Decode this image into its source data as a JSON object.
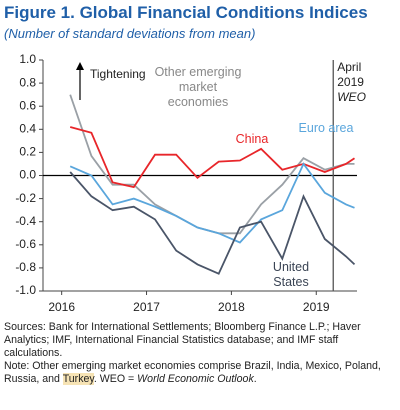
{
  "chart_data": {
    "type": "line",
    "title": "Figure 1. Global Financial Conditions Indices",
    "subtitle": "(Number of standard deviations from mean)",
    "x": [
      2016.1,
      2016.35,
      2016.6,
      2016.85,
      2017.1,
      2017.35,
      2017.6,
      2017.85,
      2018.1,
      2018.35,
      2018.6,
      2018.85,
      2019.1,
      2019.35,
      2019.45
    ],
    "series": [
      {
        "name": "Other emerging market economies",
        "color": "#9aa0a6",
        "values": [
          0.7,
          0.17,
          -0.08,
          -0.08,
          -0.25,
          -0.35,
          -0.45,
          -0.5,
          -0.5,
          -0.25,
          -0.08,
          0.15,
          0.05,
          0.1,
          0.1
        ]
      },
      {
        "name": "China",
        "color": "#e8262a",
        "values": [
          0.42,
          0.37,
          -0.06,
          -0.1,
          0.18,
          0.18,
          -0.02,
          0.12,
          0.13,
          0.23,
          0.05,
          0.1,
          0.03,
          0.1,
          0.15
        ]
      },
      {
        "name": "Euro area",
        "color": "#5aa6dc",
        "values": [
          0.08,
          0.0,
          -0.25,
          -0.2,
          -0.27,
          -0.35,
          -0.45,
          -0.5,
          -0.58,
          -0.38,
          -0.3,
          0.1,
          -0.15,
          -0.25,
          -0.28
        ]
      },
      {
        "name": "United States",
        "color": "#4a5568",
        "values": [
          0.03,
          -0.18,
          -0.3,
          -0.27,
          -0.38,
          -0.65,
          -0.77,
          -0.85,
          -0.45,
          -0.4,
          -0.72,
          -0.18,
          -0.55,
          -0.7,
          -0.77
        ]
      }
    ],
    "xlim": [
      2015.78,
      2019.48
    ],
    "xticks": [
      2016,
      2017,
      2018,
      2019
    ],
    "ylim": [
      -1,
      1
    ],
    "yticks": [
      {
        "value": 1,
        "label": "1.0"
      },
      0.8,
      0.6,
      0.4,
      0.2,
      {
        "value": 0,
        "label": "0.0"
      },
      -0.2,
      -0.4,
      -0.6,
      -0.8,
      {
        "value": -1,
        "label": "-1.0"
      }
    ],
    "zero_line": true,
    "annotations": [
      {
        "text": "Tightening"
      },
      {
        "x": 2019.2,
        "lines": [
          "April",
          "2019",
          "WEO"
        ]
      }
    ],
    "sources": "Sources: Bank for International Settlements; Bloomberg Finance L.P.; Haver Analytics; IMF, International Financial Statistics database; and IMF staff calculations.",
    "note": [
      "Note: Other emerging market economies comprise Brazil, India, Mexico, Poland, Russia, and ",
      "Turkey",
      ". WEO = ",
      "World Economic Outlook",
      "."
    ]
  }
}
